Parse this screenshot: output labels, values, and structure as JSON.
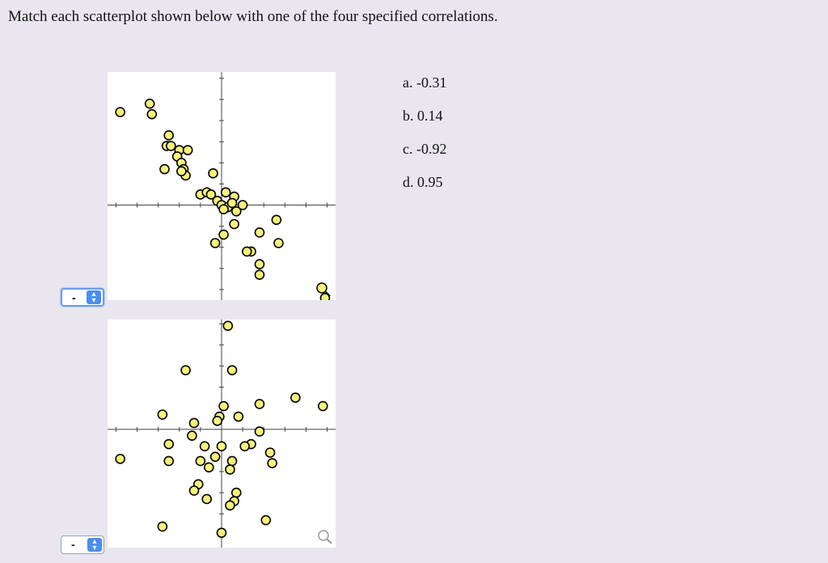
{
  "question": {
    "prompt": "Match each scatterplot shown below with one of the four specified correlations."
  },
  "options": [
    {
      "label": "a. -0.31"
    },
    {
      "label": "b. 0.14"
    },
    {
      "label": "c. -0.92"
    },
    {
      "label": "d. 0.95"
    }
  ],
  "selects": [
    {
      "value": "-"
    },
    {
      "value": "-"
    }
  ],
  "icons": {
    "dropdown": "chevron-up-down-icon",
    "zoom": "magnifier-icon"
  },
  "colors": {
    "point_fill": "#f6f27a",
    "point_stroke": "#000000",
    "select_accent": "#4a8ef0"
  },
  "chart_data": [
    {
      "type": "scatter",
      "title": "",
      "xlabel": "",
      "ylabel": "",
      "xlim": [
        -5.4,
        5.4
      ],
      "ylim": [
        -4.5,
        6.3
      ],
      "grid": false,
      "x": [
        -4.8,
        -3.4,
        -3.3,
        -2.5,
        -2.6,
        -2.4,
        -2.0,
        -2.1,
        -1.9,
        -1.8,
        -1.7,
        -1.6,
        -2.7,
        -1.9,
        -0.4,
        -1.0,
        -0.7,
        -0.5,
        -0.2,
        0.2,
        0.6,
        0.0,
        0.3,
        0.1,
        0.5,
        0.7,
        1.0,
        0.6,
        0.1,
        -0.3,
        1.8,
        1.4,
        2.6,
        2.7,
        1.2,
        1.8,
        1.8,
        4.9
      ],
      "y": [
        4.4,
        4.8,
        4.3,
        3.3,
        2.8,
        2.8,
        2.6,
        2.3,
        2.0,
        1.7,
        1.4,
        2.6,
        1.7,
        1.6,
        1.5,
        0.5,
        0.6,
        0.5,
        0.2,
        0.6,
        0.4,
        0.0,
        -0.1,
        -0.2,
        0.1,
        -0.3,
        0.0,
        -0.9,
        -1.4,
        -1.8,
        -1.3,
        -2.2,
        -0.7,
        -1.8,
        -2.2,
        -2.8,
        -3.3,
        -4.4
      ]
    },
    {
      "type": "scatter",
      "title": "",
      "xlabel": "",
      "ylabel": "",
      "xlim": [
        -5.4,
        5.4
      ],
      "ylim": [
        -5.6,
        5.2
      ],
      "grid": false,
      "x": [
        0.3,
        -1.7,
        0.5,
        1.8,
        3.5,
        4.8,
        -2.8,
        0.1,
        0.8,
        -0.1,
        -0.2,
        -1.3,
        -1.4,
        -2.5,
        -0.8,
        -1.0,
        1.8,
        1.4,
        1.1,
        2.3,
        0.0,
        -0.3,
        2.4,
        -2.5,
        -4.8,
        0.5,
        0.4,
        -0.6,
        -1.1,
        -1.3,
        0.7,
        0.6,
        0.4,
        -0.7,
        -2.8,
        0.0,
        2.1
      ],
      "y": [
        4.9,
        2.8,
        2.8,
        1.2,
        1.5,
        1.1,
        0.7,
        1.1,
        0.6,
        0.6,
        0.4,
        0.3,
        -0.3,
        -0.7,
        -0.8,
        -1.5,
        -0.1,
        -0.7,
        -0.8,
        -1.1,
        -0.8,
        -1.3,
        -1.6,
        -1.5,
        -1.4,
        -1.5,
        -1.9,
        -1.8,
        -2.6,
        -2.9,
        -3.0,
        -3.4,
        -3.6,
        -3.3,
        -4.6,
        -4.9,
        -4.3
      ]
    }
  ]
}
